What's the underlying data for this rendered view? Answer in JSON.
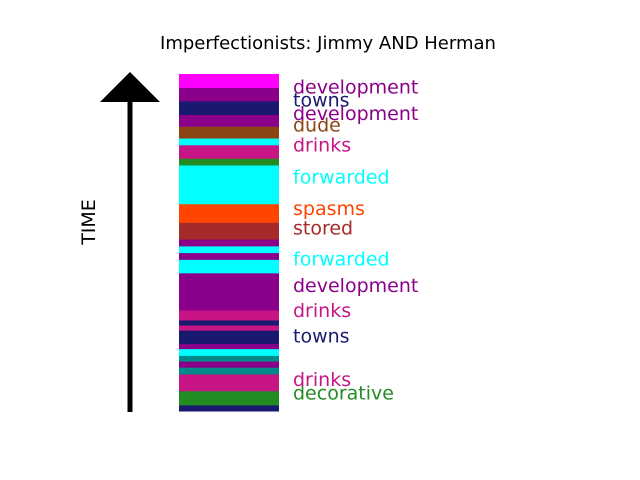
{
  "chart_data": {
    "type": "bar",
    "title": "Imperfectionists: Jimmy AND Herman",
    "ylabel": "TIME",
    "ylim": [
      0,
      1
    ],
    "segments": [
      {
        "start": 0.0,
        "end": 0.018,
        "color": "#191970"
      },
      {
        "start": 0.018,
        "end": 0.06,
        "color": "#228b22"
      },
      {
        "start": 0.06,
        "end": 0.11,
        "color": "#c71585"
      },
      {
        "start": 0.11,
        "end": 0.13,
        "color": "#008b8b"
      },
      {
        "start": 0.13,
        "end": 0.148,
        "color": "#8b008b"
      },
      {
        "start": 0.148,
        "end": 0.165,
        "color": "#008b8b"
      },
      {
        "start": 0.165,
        "end": 0.185,
        "color": "#00ffff"
      },
      {
        "start": 0.185,
        "end": 0.2,
        "color": "#8b008b"
      },
      {
        "start": 0.2,
        "end": 0.24,
        "color": "#191970"
      },
      {
        "start": 0.24,
        "end": 0.255,
        "color": "#c71585"
      },
      {
        "start": 0.255,
        "end": 0.27,
        "color": "#191970"
      },
      {
        "start": 0.27,
        "end": 0.3,
        "color": "#c71585"
      },
      {
        "start": 0.3,
        "end": 0.33,
        "color": "#8b008b"
      },
      {
        "start": 0.33,
        "end": 0.41,
        "color": "#8b008b"
      },
      {
        "start": 0.41,
        "end": 0.45,
        "color": "#00ffff"
      },
      {
        "start": 0.45,
        "end": 0.47,
        "color": "#8b008b"
      },
      {
        "start": 0.47,
        "end": 0.49,
        "color": "#00ffff"
      },
      {
        "start": 0.49,
        "end": 0.51,
        "color": "#8b008b"
      },
      {
        "start": 0.51,
        "end": 0.56,
        "color": "#a52a2a"
      },
      {
        "start": 0.56,
        "end": 0.615,
        "color": "#ff4500"
      },
      {
        "start": 0.615,
        "end": 0.73,
        "color": "#00ffff"
      },
      {
        "start": 0.73,
        "end": 0.75,
        "color": "#228b22"
      },
      {
        "start": 0.75,
        "end": 0.79,
        "color": "#c71585"
      },
      {
        "start": 0.79,
        "end": 0.81,
        "color": "#00ffff"
      },
      {
        "start": 0.81,
        "end": 0.845,
        "color": "#8b4513"
      },
      {
        "start": 0.845,
        "end": 0.88,
        "color": "#8b008b"
      },
      {
        "start": 0.88,
        "end": 0.92,
        "color": "#191970"
      },
      {
        "start": 0.92,
        "end": 0.96,
        "color": "#8b008b"
      },
      {
        "start": 0.96,
        "end": 1.0,
        "color": "#ff00ff"
      }
    ],
    "labels": [
      {
        "text": "decorative",
        "y": 0.05,
        "color": "#228b22"
      },
      {
        "text": "drinks",
        "y": 0.09,
        "color": "#c71585"
      },
      {
        "text": "towns",
        "y": 0.22,
        "color": "#191970"
      },
      {
        "text": "drinks",
        "y": 0.295,
        "color": "#c71585"
      },
      {
        "text": "development",
        "y": 0.37,
        "color": "#8b008b"
      },
      {
        "text": "forwarded",
        "y": 0.448,
        "color": "#00ffff"
      },
      {
        "text": "stored",
        "y": 0.54,
        "color": "#a52a2a"
      },
      {
        "text": "spasms",
        "y": 0.598,
        "color": "#ff4500"
      },
      {
        "text": "forwarded",
        "y": 0.692,
        "color": "#00ffff"
      },
      {
        "text": "drinks",
        "y": 0.786,
        "color": "#c71585"
      },
      {
        "text": "dude",
        "y": 0.846,
        "color": "#8b4513"
      },
      {
        "text": "development",
        "y": 0.88,
        "color": "#8b008b"
      },
      {
        "text": "towns",
        "y": 0.92,
        "color": "#191970"
      },
      {
        "text": "development",
        "y": 0.958,
        "color": "#8b008b"
      }
    ]
  }
}
